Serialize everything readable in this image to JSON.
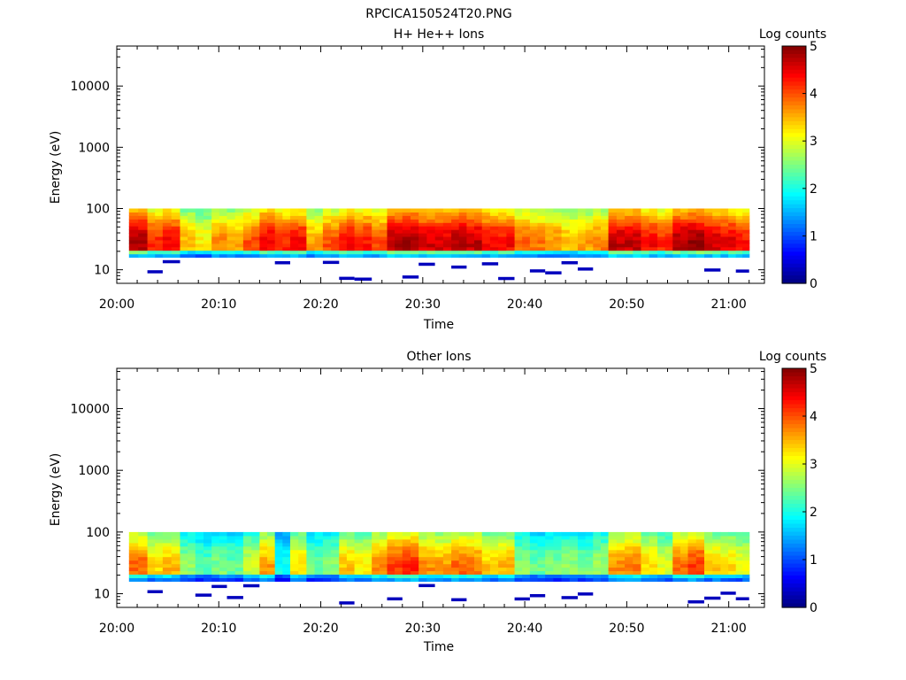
{
  "figure_title": "RPCICA150524T20.PNG",
  "chart_data": [
    {
      "type": "heatmap",
      "title": "H+ He++ Ions",
      "xlabel": "Time",
      "ylabel": "Energy (eV)",
      "colorbar_label": "Log counts",
      "colorbar_ticks": [
        "0",
        "1",
        "2",
        "3",
        "4",
        "5"
      ],
      "clim": [
        0,
        5
      ],
      "yscale": "log",
      "ylim": [
        6,
        45000
      ],
      "y_ticks": [
        "10",
        "100",
        "1000",
        "10000"
      ],
      "x_ticks": [
        "20:00",
        "20:10",
        "20:20",
        "20:30",
        "20:40",
        "20:50",
        "21:00"
      ],
      "xlim_minutes": [
        0,
        63.5
      ],
      "data_window_minutes": [
        1.2,
        62
      ],
      "energy_range_ev": [
        16,
        100
      ],
      "peak_log_counts_by_minute": [
        {
          "t": 1.2,
          "v": 4.8
        },
        {
          "t": 3.0,
          "v": 4.2
        },
        {
          "t": 4.5,
          "v": 4.4
        },
        {
          "t": 6.2,
          "v": 3.5
        },
        {
          "t": 7.7,
          "v": 3.2
        },
        {
          "t": 9.3,
          "v": 3.7
        },
        {
          "t": 10.8,
          "v": 3.6
        },
        {
          "t": 12.4,
          "v": 4.0
        },
        {
          "t": 14.0,
          "v": 4.5
        },
        {
          "t": 15.5,
          "v": 4.2
        },
        {
          "t": 17.0,
          "v": 4.4
        },
        {
          "t": 18.6,
          "v": 3.6
        },
        {
          "t": 20.2,
          "v": 4.0
        },
        {
          "t": 21.8,
          "v": 4.4
        },
        {
          "t": 23.3,
          "v": 4.3
        },
        {
          "t": 25.0,
          "v": 4.0
        },
        {
          "t": 26.5,
          "v": 4.8
        },
        {
          "t": 28.0,
          "v": 4.9
        },
        {
          "t": 29.6,
          "v": 4.6
        },
        {
          "t": 31.2,
          "v": 4.6
        },
        {
          "t": 32.8,
          "v": 4.8
        },
        {
          "t": 34.3,
          "v": 4.7
        },
        {
          "t": 35.8,
          "v": 4.4
        },
        {
          "t": 37.4,
          "v": 4.4
        },
        {
          "t": 39.0,
          "v": 3.9
        },
        {
          "t": 40.5,
          "v": 3.8
        },
        {
          "t": 42.0,
          "v": 3.7
        },
        {
          "t": 43.6,
          "v": 3.5
        },
        {
          "t": 45.2,
          "v": 3.6
        },
        {
          "t": 46.7,
          "v": 3.8
        },
        {
          "t": 48.2,
          "v": 4.7
        },
        {
          "t": 49.8,
          "v": 4.7
        },
        {
          "t": 51.4,
          "v": 4.4
        },
        {
          "t": 53.0,
          "v": 4.2
        },
        {
          "t": 54.5,
          "v": 4.8
        },
        {
          "t": 56.0,
          "v": 4.9
        },
        {
          "t": 57.6,
          "v": 4.6
        },
        {
          "t": 59.2,
          "v": 4.5
        },
        {
          "t": 60.7,
          "v": 4.3
        }
      ]
    },
    {
      "type": "heatmap",
      "title": "Other Ions",
      "xlabel": "Time",
      "ylabel": "Energy (eV)",
      "colorbar_label": "Log counts",
      "colorbar_ticks": [
        "0",
        "1",
        "2",
        "3",
        "4",
        "5"
      ],
      "clim": [
        0,
        5
      ],
      "yscale": "log",
      "ylim": [
        6,
        45000
      ],
      "y_ticks": [
        "10",
        "100",
        "1000",
        "10000"
      ],
      "x_ticks": [
        "20:00",
        "20:10",
        "20:20",
        "20:30",
        "20:40",
        "20:50",
        "21:00"
      ],
      "xlim_minutes": [
        0,
        63.5
      ],
      "data_window_minutes": [
        1.2,
        62
      ],
      "energy_range_ev": [
        16,
        100
      ],
      "peak_log_counts_by_minute": [
        {
          "t": 1.2,
          "v": 3.9
        },
        {
          "t": 3.0,
          "v": 3.3
        },
        {
          "t": 4.5,
          "v": 3.5
        },
        {
          "t": 6.2,
          "v": 2.6
        },
        {
          "t": 7.7,
          "v": 2.3
        },
        {
          "t": 9.3,
          "v": 2.5
        },
        {
          "t": 10.8,
          "v": 2.4
        },
        {
          "t": 12.4,
          "v": 2.9
        },
        {
          "t": 14.0,
          "v": 3.6
        },
        {
          "t": 15.5,
          "v": 2.0
        },
        {
          "t": 17.0,
          "v": 3.3
        },
        {
          "t": 18.6,
          "v": 2.4
        },
        {
          "t": 20.2,
          "v": 2.6
        },
        {
          "t": 21.8,
          "v": 3.4
        },
        {
          "t": 23.3,
          "v": 3.2
        },
        {
          "t": 25.0,
          "v": 3.7
        },
        {
          "t": 26.5,
          "v": 4.1
        },
        {
          "t": 28.0,
          "v": 4.2
        },
        {
          "t": 29.6,
          "v": 3.7
        },
        {
          "t": 31.2,
          "v": 3.6
        },
        {
          "t": 32.8,
          "v": 3.9
        },
        {
          "t": 34.3,
          "v": 3.8
        },
        {
          "t": 35.8,
          "v": 3.4
        },
        {
          "t": 37.4,
          "v": 3.5
        },
        {
          "t": 39.0,
          "v": 2.6
        },
        {
          "t": 40.5,
          "v": 2.4
        },
        {
          "t": 42.0,
          "v": 2.5
        },
        {
          "t": 43.6,
          "v": 2.6
        },
        {
          "t": 45.2,
          "v": 2.5
        },
        {
          "t": 46.7,
          "v": 2.7
        },
        {
          "t": 48.2,
          "v": 3.7
        },
        {
          "t": 49.8,
          "v": 3.8
        },
        {
          "t": 51.4,
          "v": 3.3
        },
        {
          "t": 53.0,
          "v": 3.0
        },
        {
          "t": 54.5,
          "v": 3.9
        },
        {
          "t": 56.0,
          "v": 4.1
        },
        {
          "t": 57.6,
          "v": 3.4
        },
        {
          "t": 59.2,
          "v": 3.3
        },
        {
          "t": 60.7,
          "v": 3.1
        }
      ]
    }
  ]
}
